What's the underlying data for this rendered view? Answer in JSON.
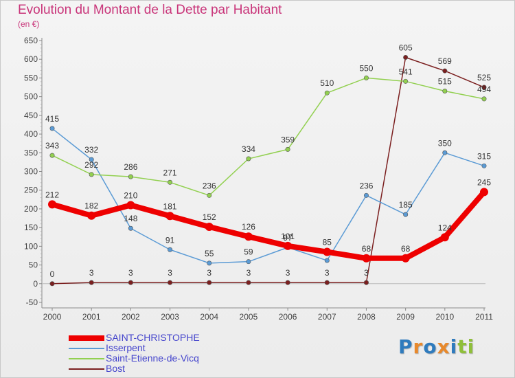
{
  "title": "Evolution du Montant de la Dette par Habitant",
  "subtitle": "(en €)",
  "logo": {
    "letters": [
      {
        "ch": "P",
        "color": "#2f7bbd"
      },
      {
        "ch": "r",
        "color": "#e8892c"
      },
      {
        "ch": "o",
        "color": "#2f7bbd"
      },
      {
        "ch": "x",
        "color": "#e8892c"
      },
      {
        "ch": "i",
        "color": "#2f7bbd"
      },
      {
        "ch": "t",
        "color": "#8fbf3a"
      },
      {
        "ch": "i",
        "color": "#8fbf3a"
      }
    ]
  },
  "chart_data": {
    "type": "line",
    "title": "Evolution du Montant de la Dette par Habitant",
    "subtitle": "(en €)",
    "x": [
      "2000",
      "2001",
      "2002",
      "2003",
      "2004",
      "2005",
      "2006",
      "2007",
      "2008",
      "2009",
      "2010",
      "2011"
    ],
    "ylim": [
      -50,
      650
    ],
    "yticks": [
      -50,
      0,
      50,
      100,
      150,
      200,
      250,
      300,
      350,
      400,
      450,
      500,
      550,
      600,
      650
    ],
    "grid": false,
    "legend_position": "bottom-left",
    "series": [
      {
        "name": "SAINT-CHRISTOPHE",
        "color": "#ee0000",
        "values": [
          212,
          182,
          210,
          181,
          152,
          126,
          101,
          85,
          68,
          68,
          124,
          245
        ],
        "labels": [
          "212",
          "182",
          "210",
          "181",
          "152",
          "126",
          "101",
          "85",
          "68",
          "68",
          "124",
          "245"
        ]
      },
      {
        "name": "Isserpent",
        "color": "#5b9bd5",
        "values": [
          415,
          332,
          148,
          91,
          55,
          59,
          97,
          62,
          236,
          185,
          350,
          315
        ],
        "labels": [
          "415",
          "332",
          "148",
          "91",
          "55",
          "59",
          "97",
          "",
          "236",
          "185",
          "350",
          "315"
        ]
      },
      {
        "name": "Saint-Etienne-de-Vicq",
        "color": "#92d050",
        "values": [
          343,
          292,
          286,
          271,
          236,
          334,
          359,
          510,
          550,
          541,
          515,
          494
        ],
        "labels": [
          "343",
          "292",
          "286",
          "271",
          "236",
          "334",
          "359",
          "510",
          "550",
          "541",
          "515",
          "494"
        ]
      },
      {
        "name": "Bost",
        "color": "#7b1f1f",
        "values": [
          0,
          3,
          3,
          3,
          3,
          3,
          3,
          3,
          3,
          605,
          569,
          525
        ],
        "labels": [
          "0",
          "3",
          "3",
          "3",
          "3",
          "3",
          "3",
          "3",
          "3",
          "605",
          "569",
          "525"
        ]
      }
    ]
  }
}
